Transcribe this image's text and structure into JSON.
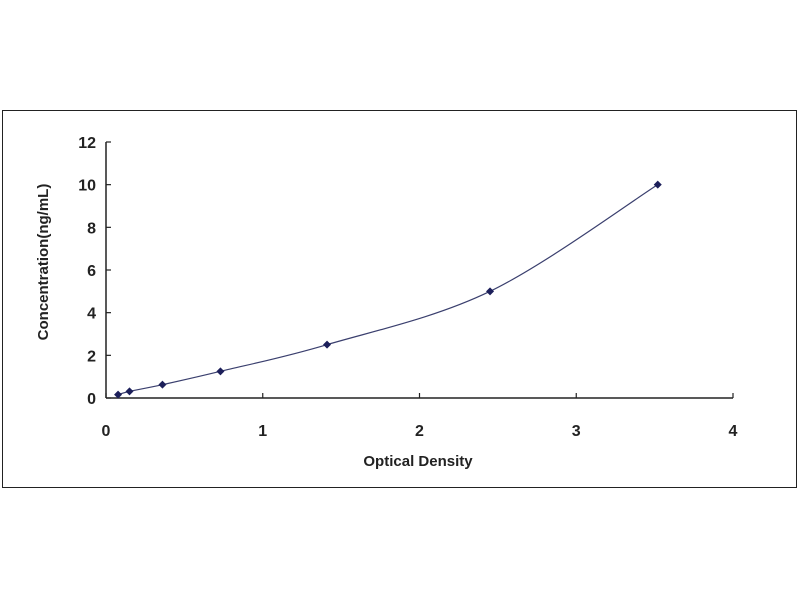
{
  "chart_data": {
    "type": "scatter",
    "title": "",
    "xlabel": "Optical Density",
    "ylabel": "Concentration(ng/mL)",
    "xlim": [
      0,
      4
    ],
    "ylim": [
      0,
      12
    ],
    "xticks": [
      "0",
      "1",
      "2",
      "3",
      "4"
    ],
    "yticks": [
      "0",
      "2",
      "4",
      "6",
      "8",
      "10",
      "12"
    ],
    "grid": false,
    "trendline": "smooth curve",
    "series": [
      {
        "x": [
          0.077,
          0.15,
          0.36,
          0.73,
          1.41,
          2.45,
          3.52
        ],
        "y": [
          0.156,
          0.312,
          0.625,
          1.25,
          2.5,
          5,
          10
        ]
      }
    ],
    "colors": {
      "marker": "#1c1f5a",
      "line": "#3a3f6e",
      "axis": "#222222"
    }
  }
}
